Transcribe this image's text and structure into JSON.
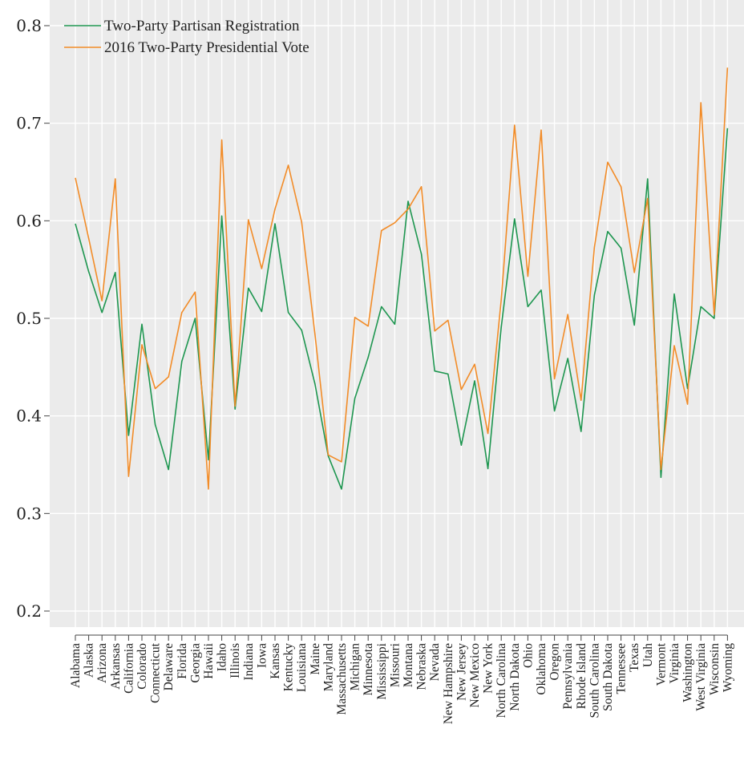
{
  "chart_data": {
    "type": "line",
    "title": "",
    "xlabel": "",
    "ylabel": "",
    "ylim": [
      0.2,
      0.8
    ],
    "yticks": [
      0.2,
      0.3,
      0.4,
      0.5,
      0.6,
      0.7,
      0.8
    ],
    "grid": true,
    "legend_position": "top-left",
    "categories": [
      "Alabama",
      "Alaska",
      "Arizona",
      "Arkansas",
      "California",
      "Colorado",
      "Connecticut",
      "Delaware",
      "Florida",
      "Georgia",
      "Hawaii",
      "Idaho",
      "Illinois",
      "Indiana",
      "Iowa",
      "Kansas",
      "Kentucky",
      "Louisiana",
      "Maine",
      "Maryland",
      "Massachusetts",
      "Michigan",
      "Minnesota",
      "Mississippi",
      "Missouri",
      "Montana",
      "Nebraska",
      "Nevada",
      "New Hampshire",
      "New Jersey",
      "New Mexico",
      "New York",
      "North Carolina",
      "North Dakota",
      "Ohio",
      "Oklahoma",
      "Oregon",
      "Pennsylvania",
      "Rhode Island",
      "South Carolina",
      "South Dakota",
      "Tennessee",
      "Texas",
      "Utah",
      "Vermont",
      "Virginia",
      "Washington",
      "West Virginia",
      "Wisconsin",
      "Wyoming"
    ],
    "series": [
      {
        "name": "Two-Party Partisan Registration",
        "color": "#1e9650",
        "values": [
          0.597,
          0.548,
          0.506,
          0.547,
          0.38,
          0.494,
          0.391,
          0.345,
          0.456,
          0.5,
          0.355,
          0.605,
          0.407,
          0.531,
          0.507,
          0.597,
          0.506,
          0.488,
          0.433,
          0.359,
          0.325,
          0.418,
          0.46,
          0.512,
          0.494,
          0.62,
          0.566,
          0.446,
          0.443,
          0.37,
          0.436,
          0.346,
          0.491,
          0.602,
          0.512,
          0.529,
          0.405,
          0.459,
          0.384,
          0.524,
          0.589,
          0.572,
          0.493,
          0.643,
          0.337,
          0.525,
          0.428,
          0.512,
          0.5,
          0.695
        ]
      },
      {
        "name": "2016 Two-Party Presidential Vote",
        "color": "#f28c28",
        "values": [
          0.644,
          0.582,
          0.518,
          0.643,
          0.338,
          0.473,
          0.428,
          0.44,
          0.506,
          0.527,
          0.325,
          0.683,
          0.41,
          0.601,
          0.551,
          0.612,
          0.657,
          0.599,
          0.484,
          0.36,
          0.353,
          0.501,
          0.492,
          0.59,
          0.598,
          0.612,
          0.635,
          0.487,
          0.498,
          0.427,
          0.453,
          0.382,
          0.519,
          0.698,
          0.543,
          0.693,
          0.438,
          0.504,
          0.416,
          0.573,
          0.66,
          0.635,
          0.547,
          0.623,
          0.345,
          0.472,
          0.412,
          0.721,
          0.504,
          0.757
        ]
      }
    ]
  }
}
